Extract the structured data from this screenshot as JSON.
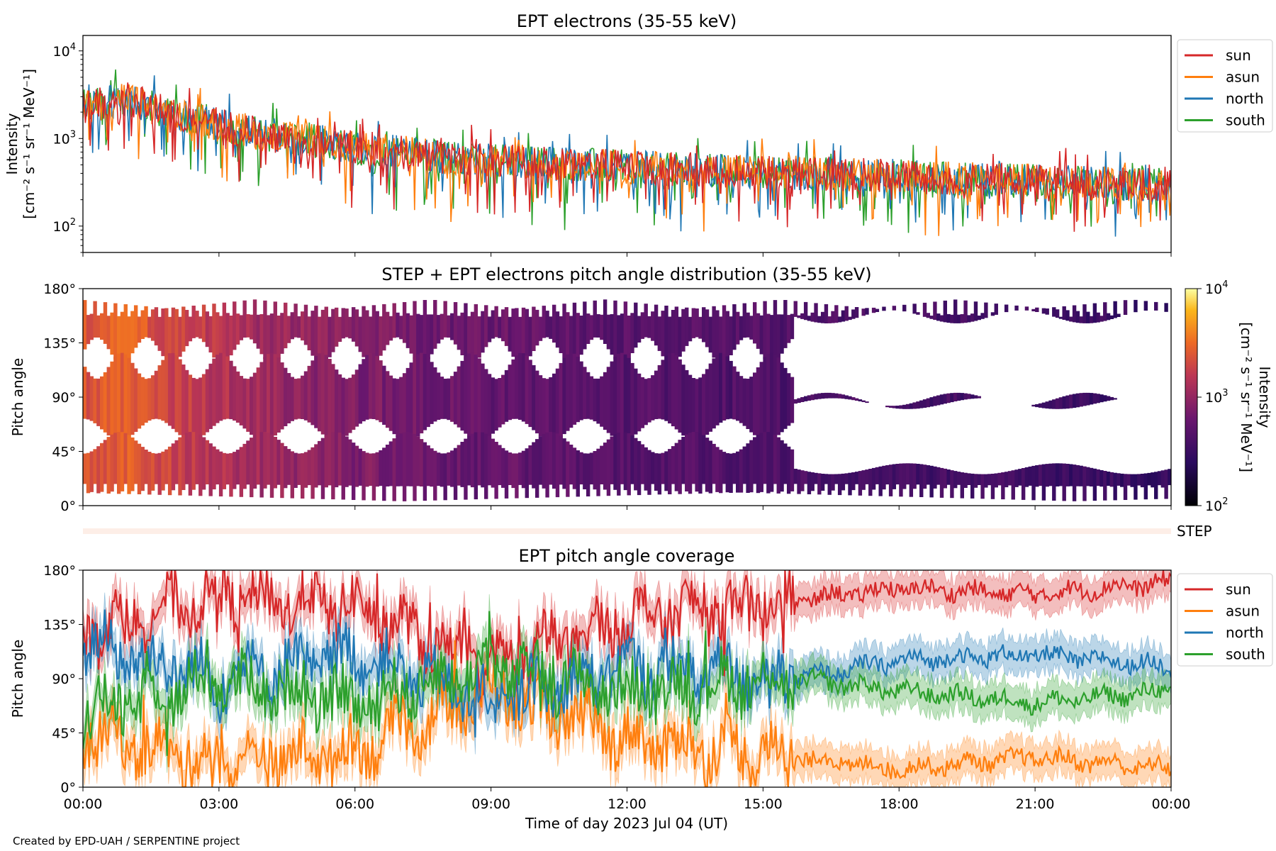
{
  "footer": {
    "credit": "Created by EPD-UAH / SERPENTINE project"
  },
  "colors": {
    "sun": "#d62728",
    "asun": "#ff7f0e",
    "north": "#1f77b4",
    "south": "#2ca02c"
  },
  "chart_data": [
    {
      "type": "line",
      "title": "EPT electrons (35-55 keV)",
      "ylabel": [
        "Intensity",
        "[cm⁻² s⁻¹ sr⁻¹ MeV⁻¹]"
      ],
      "yscale": "log",
      "ylim": [
        50,
        15000
      ],
      "yticks": [
        {
          "v": 100,
          "base": "10",
          "exp": "2"
        },
        {
          "v": 1000,
          "base": "10",
          "exp": "3"
        },
        {
          "v": 10000,
          "base": "10",
          "exp": "4"
        }
      ],
      "xlim": [
        "2023-07-04 00:00",
        "2023-07-05 00:00"
      ],
      "legend": "outside-right",
      "series": [
        {
          "name": "sun",
          "key": "sun"
        },
        {
          "name": "asun",
          "key": "asun"
        },
        {
          "name": "north",
          "key": "north"
        },
        {
          "name": "south",
          "key": "south"
        }
      ],
      "trend_hours": [
        0,
        1,
        2,
        4,
        6,
        8,
        12,
        16,
        20,
        24
      ],
      "trend_values": [
        2300,
        2800,
        1800,
        1100,
        800,
        600,
        470,
        400,
        340,
        290
      ]
    },
    {
      "type": "heatmap",
      "title": "STEP + EPT electrons pitch angle distribution (35-55 keV)",
      "ylabel": "Pitch angle",
      "ylim": [
        0,
        180
      ],
      "yticks": [
        "0°",
        "45°",
        "90°",
        "135°",
        "180°"
      ],
      "colorbar": {
        "label": [
          "Intensity",
          "[cm⁻² s⁻¹ sr⁻¹ MeV⁻¹]"
        ],
        "scale": "log",
        "range": [
          100,
          10000
        ],
        "ticks": [
          {
            "v": 100,
            "base": "10",
            "exp": "2"
          },
          {
            "v": 1000,
            "base": "10",
            "exp": "3"
          },
          {
            "v": 10000,
            "base": "10",
            "exp": "4"
          }
        ]
      },
      "step_strip_label": "STEP"
    },
    {
      "type": "line",
      "title": "EPT pitch angle coverage",
      "ylabel": "Pitch angle",
      "ylim": [
        0,
        180
      ],
      "yticks": [
        "0°",
        "45°",
        "90°",
        "135°",
        "180°"
      ],
      "xlabel": "Time of day 2023 Jul 04 (UT)",
      "xticks": [
        "00:00",
        "03:00",
        "06:00",
        "09:00",
        "12:00",
        "15:00",
        "18:00",
        "21:00",
        "00:00"
      ],
      "legend": "outside-right",
      "series": [
        {
          "name": "sun",
          "key": "sun",
          "hours": [
            0,
            3,
            6,
            9,
            12,
            15.7,
            18,
            21,
            24
          ],
          "values": [
            130,
            160,
            150,
            100,
            140,
            155,
            165,
            160,
            170
          ]
        },
        {
          "name": "asun",
          "key": "asun",
          "hours": [
            0,
            3,
            6,
            9,
            12,
            15.7,
            18,
            21,
            24
          ],
          "values": [
            45,
            20,
            30,
            80,
            40,
            25,
            15,
            25,
            15
          ]
        },
        {
          "name": "north",
          "key": "north",
          "hours": [
            0,
            3,
            6,
            9,
            12,
            15.7,
            18,
            21,
            24
          ],
          "values": [
            120,
            90,
            110,
            70,
            100,
            90,
            105,
            110,
            100
          ]
        },
        {
          "name": "south",
          "key": "south",
          "hours": [
            0,
            3,
            6,
            9,
            12,
            15.7,
            18,
            21,
            24
          ],
          "values": [
            60,
            90,
            70,
            100,
            80,
            90,
            80,
            70,
            80
          ]
        }
      ]
    }
  ]
}
